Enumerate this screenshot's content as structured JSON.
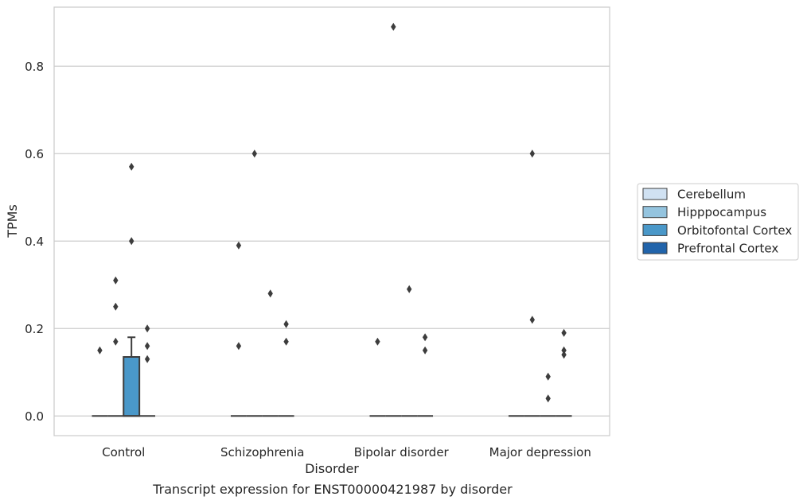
{
  "caption": "Transcript expression for ENST00000421987 by disorder",
  "chart_data": {
    "type": "box",
    "title": "",
    "xlabel": "Disorder",
    "ylabel": "TPMs",
    "categories": [
      "Control",
      "Schizophrenia",
      "Bipolar disorder",
      "Major depression"
    ],
    "ylim": [
      -0.045,
      0.935
    ],
    "yticks": [
      0.0,
      0.2,
      0.4,
      0.6,
      0.8
    ],
    "ytick_labels": [
      "0.0",
      "0.2",
      "0.4",
      "0.6",
      "0.8"
    ],
    "grid": true,
    "legend_position": "right",
    "hue_series": [
      {
        "name": "Cerebellum",
        "color": "#d0e1f2"
      },
      {
        "name": "Hipppocampus",
        "color": "#94c4df"
      },
      {
        "name": "Orbitofontal Cortex",
        "color": "#4a98c9"
      },
      {
        "name": "Prefrontal Cortex",
        "color": "#2164ab"
      }
    ],
    "boxes": [
      {
        "category": "Control",
        "hue": "Cerebellum",
        "q1": 0,
        "median": 0,
        "q3": 0,
        "whisker_low": 0,
        "whisker_high": 0,
        "outliers": [
          0.15
        ]
      },
      {
        "category": "Control",
        "hue": "Hipppocampus",
        "q1": 0,
        "median": 0,
        "q3": 0,
        "whisker_low": 0,
        "whisker_high": 0,
        "outliers": [
          0.31,
          0.25,
          0.17
        ]
      },
      {
        "category": "Control",
        "hue": "Orbitofontal Cortex",
        "q1": 0,
        "median": 0,
        "q3": 0.135,
        "whisker_low": 0,
        "whisker_high": 0.18,
        "outliers": [
          0.57,
          0.4
        ]
      },
      {
        "category": "Control",
        "hue": "Prefrontal Cortex",
        "q1": 0,
        "median": 0,
        "q3": 0,
        "whisker_low": 0,
        "whisker_high": 0,
        "outliers": [
          0.2,
          0.16,
          0.13
        ]
      },
      {
        "category": "Schizophrenia",
        "hue": "Cerebellum",
        "q1": 0,
        "median": 0,
        "q3": 0,
        "whisker_low": 0,
        "whisker_high": 0,
        "outliers": [
          0.39,
          0.16
        ]
      },
      {
        "category": "Schizophrenia",
        "hue": "Hipppocampus",
        "q1": 0,
        "median": 0,
        "q3": 0,
        "whisker_low": 0,
        "whisker_high": 0,
        "outliers": [
          0.6
        ]
      },
      {
        "category": "Schizophrenia",
        "hue": "Orbitofontal Cortex",
        "q1": 0,
        "median": 0,
        "q3": 0,
        "whisker_low": 0,
        "whisker_high": 0,
        "outliers": [
          0.28
        ]
      },
      {
        "category": "Schizophrenia",
        "hue": "Prefrontal Cortex",
        "q1": 0,
        "median": 0,
        "q3": 0,
        "whisker_low": 0,
        "whisker_high": 0,
        "outliers": [
          0.21,
          0.17
        ]
      },
      {
        "category": "Bipolar disorder",
        "hue": "Cerebellum",
        "q1": 0,
        "median": 0,
        "q3": 0,
        "whisker_low": 0,
        "whisker_high": 0,
        "outliers": [
          0.17
        ]
      },
      {
        "category": "Bipolar disorder",
        "hue": "Hipppocampus",
        "q1": 0,
        "median": 0,
        "q3": 0,
        "whisker_low": 0,
        "whisker_high": 0,
        "outliers": [
          0.89
        ]
      },
      {
        "category": "Bipolar disorder",
        "hue": "Orbitofontal Cortex",
        "q1": 0,
        "median": 0,
        "q3": 0,
        "whisker_low": 0,
        "whisker_high": 0,
        "outliers": [
          0.29
        ]
      },
      {
        "category": "Bipolar disorder",
        "hue": "Prefrontal Cortex",
        "q1": 0,
        "median": 0,
        "q3": 0,
        "whisker_low": 0,
        "whisker_high": 0,
        "outliers": [
          0.18,
          0.15
        ]
      },
      {
        "category": "Major depression",
        "hue": "Cerebellum",
        "q1": 0,
        "median": 0,
        "q3": 0,
        "whisker_low": 0,
        "whisker_high": 0,
        "outliers": []
      },
      {
        "category": "Major depression",
        "hue": "Hipppocampus",
        "q1": 0,
        "median": 0,
        "q3": 0,
        "whisker_low": 0,
        "whisker_high": 0,
        "outliers": [
          0.6,
          0.22
        ]
      },
      {
        "category": "Major depression",
        "hue": "Orbitofontal Cortex",
        "q1": 0,
        "median": 0,
        "q3": 0,
        "whisker_low": 0,
        "whisker_high": 0,
        "outliers": [
          0.09,
          0.04
        ]
      },
      {
        "category": "Major depression",
        "hue": "Prefrontal Cortex",
        "q1": 0,
        "median": 0,
        "q3": 0,
        "whisker_low": 0,
        "whisker_high": 0,
        "outliers": [
          0.19,
          0.15,
          0.14
        ]
      }
    ]
  }
}
